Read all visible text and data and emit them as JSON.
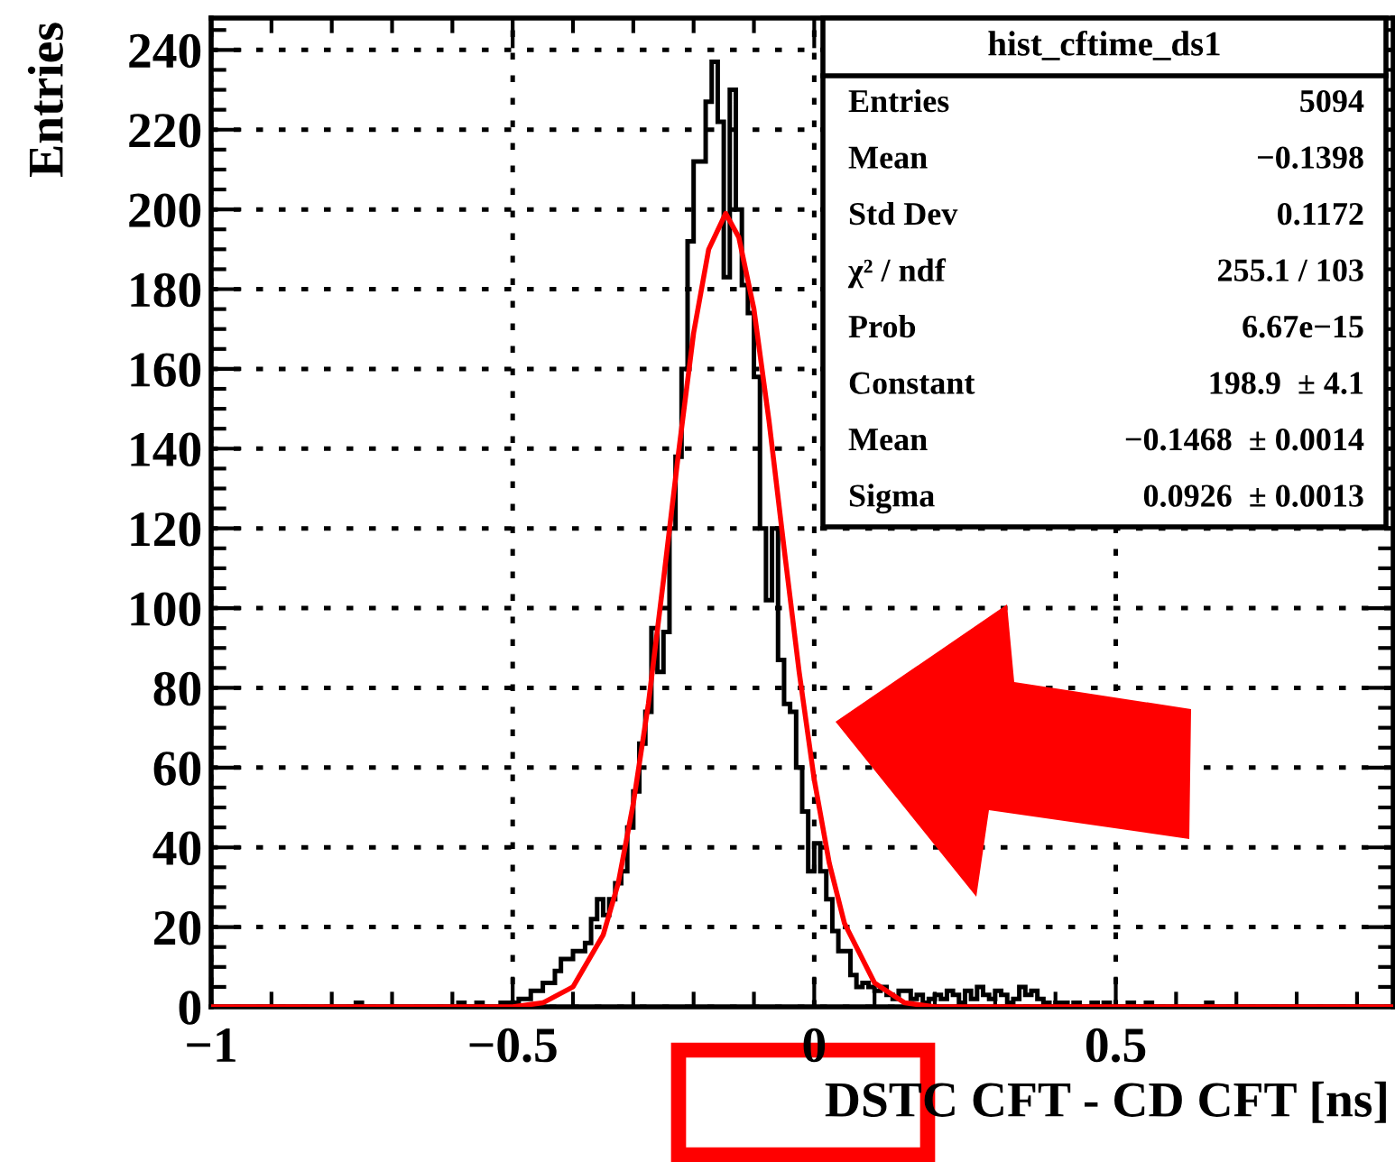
{
  "chart_data": {
    "type": "histogram",
    "xlabel": "DSTC CFT - CD CFT [ns]",
    "ylabel": "Entries",
    "xlim": [
      -1,
      0.96
    ],
    "xticks": [
      -1,
      -0.5,
      0,
      0.5
    ],
    "ylim": [
      0,
      248
    ],
    "yticks": [
      0,
      20,
      40,
      60,
      80,
      100,
      120,
      140,
      160,
      180,
      200,
      220,
      240
    ],
    "grid": true,
    "annotations": [
      "hist_cftime_ds1",
      "Entries",
      "5094",
      "Mean",
      "−0.1398",
      "Std Dev",
      "0.1172",
      "χ² / ndf",
      "255.1 / 103",
      "Prob",
      "6.67e−15",
      "Constant",
      "198.9  ± 4.1",
      "Mean",
      "−0.1468  ± 0.0014",
      "Sigma",
      "0.0926  ± 0.0013"
    ],
    "series": [
      {
        "color": "#000000",
        "bins": [
          -1,
          -0.76,
          -0.75,
          -0.6,
          -0.59,
          -0.58,
          -0.57,
          -0.56,
          -0.55,
          -0.54,
          -0.53,
          -0.52,
          -0.51,
          -0.5,
          -0.49,
          -0.48,
          -0.47,
          -0.46,
          -0.45,
          -0.44,
          -0.43,
          -0.42,
          -0.41,
          -0.4,
          -0.39,
          -0.38,
          -0.37,
          -0.36,
          -0.35,
          -0.34,
          -0.33,
          -0.32,
          -0.31,
          -0.3,
          -0.29,
          -0.28,
          -0.27,
          -0.26,
          -0.25,
          -0.24,
          -0.23,
          -0.22,
          -0.21,
          -0.2,
          -0.19,
          -0.18,
          -0.17,
          -0.16,
          -0.15,
          -0.14,
          -0.13,
          -0.12,
          -0.11,
          -0.1,
          -0.09,
          -0.08,
          -0.07,
          -0.06,
          -0.05,
          -0.04,
          -0.03,
          -0.02,
          -0.01,
          0,
          0.01,
          0.02,
          0.03,
          0.04,
          0.05,
          0.06,
          0.07,
          0.08,
          0.09,
          0.1,
          0.11,
          0.12,
          0.13,
          0.14,
          0.15,
          0.16,
          0.17,
          0.18,
          0.19,
          0.2,
          0.21,
          0.22,
          0.23,
          0.24,
          0.25,
          0.26,
          0.27,
          0.28,
          0.29,
          0.3,
          0.31,
          0.32,
          0.33,
          0.34,
          0.35,
          0.36,
          0.37,
          0.38,
          0.39,
          0.4,
          0.41,
          0.42,
          0.43,
          0.44,
          0.45,
          0.46,
          0.47,
          0.48,
          0.49,
          0.5,
          0.51,
          0.52,
          0.53,
          0.54,
          0.55,
          0.56,
          0.6,
          0.65,
          0.66,
          0.96
        ],
        "values": [
          0,
          1,
          0,
          0,
          1,
          0,
          0,
          1,
          0,
          0,
          0,
          1,
          1,
          1,
          2,
          2,
          4,
          4,
          6,
          6,
          9,
          12,
          12,
          14,
          14,
          16,
          22,
          27,
          23,
          27,
          31,
          34,
          45,
          54,
          66,
          74,
          95,
          84,
          94,
          120,
          138,
          160,
          192,
          212,
          212,
          227,
          237,
          222,
          183,
          230,
          200,
          181,
          174,
          158,
          120,
          102,
          120,
          87,
          76,
          74,
          60,
          49,
          34,
          41,
          34,
          27,
          19,
          14,
          14,
          8,
          5,
          6,
          5,
          4,
          5,
          3,
          2,
          4,
          4,
          2,
          3,
          1,
          2,
          3,
          2,
          4,
          3,
          1,
          4,
          2,
          5,
          3,
          2,
          4,
          3,
          1,
          2,
          5,
          3,
          4,
          2,
          1,
          0,
          1,
          1,
          0,
          1,
          0,
          0,
          1,
          0,
          1,
          0,
          0,
          0,
          1,
          0,
          0,
          1,
          0,
          0,
          1,
          0
        ]
      },
      {
        "type": "line",
        "color": "#ff0000",
        "x": [
          -1,
          -0.6,
          -0.5,
          -0.45,
          -0.4,
          -0.35,
          -0.325,
          -0.3,
          -0.275,
          -0.25,
          -0.225,
          -0.2,
          -0.175,
          -0.1468,
          -0.125,
          -0.1,
          -0.075,
          -0.05,
          -0.025,
          0,
          0.025,
          0.05,
          0.1,
          0.15,
          0.2,
          0.3,
          0.96
        ],
        "values": [
          0,
          0,
          0,
          1,
          5,
          18,
          31,
          51,
          76,
          107,
          139,
          169,
          190,
          199,
          193,
          175,
          147,
          115,
          84,
          57,
          36,
          21,
          6,
          1,
          0,
          0,
          0
        ]
      }
    ]
  }
}
